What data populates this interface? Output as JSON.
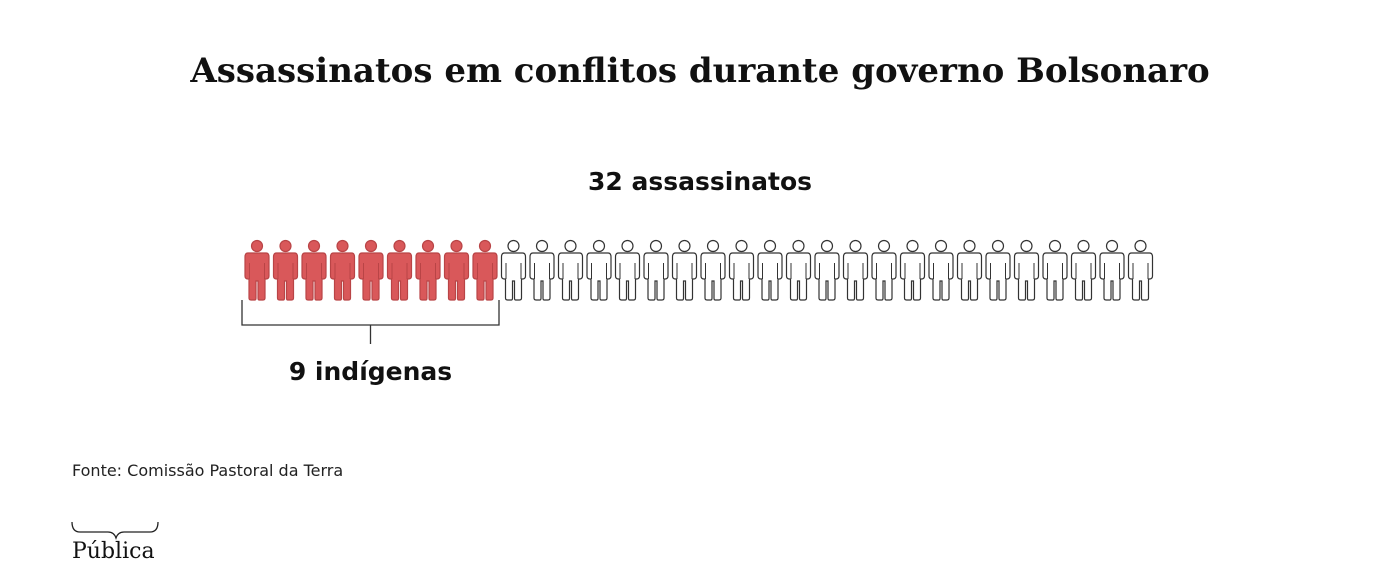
{
  "chart_data": {
    "type": "pictogram",
    "title": "Assassinatos em conflitos durante governo Bolsonaro",
    "total": {
      "value": 32,
      "label": "32 assassinatos"
    },
    "highlighted": {
      "value": 9,
      "label": "9 indígenas"
    },
    "highlight_color": "#d9585a",
    "base_color": "#ffffff"
  },
  "source": "Fonte: Comissão Pastoral da Terra",
  "logo": "Pública"
}
